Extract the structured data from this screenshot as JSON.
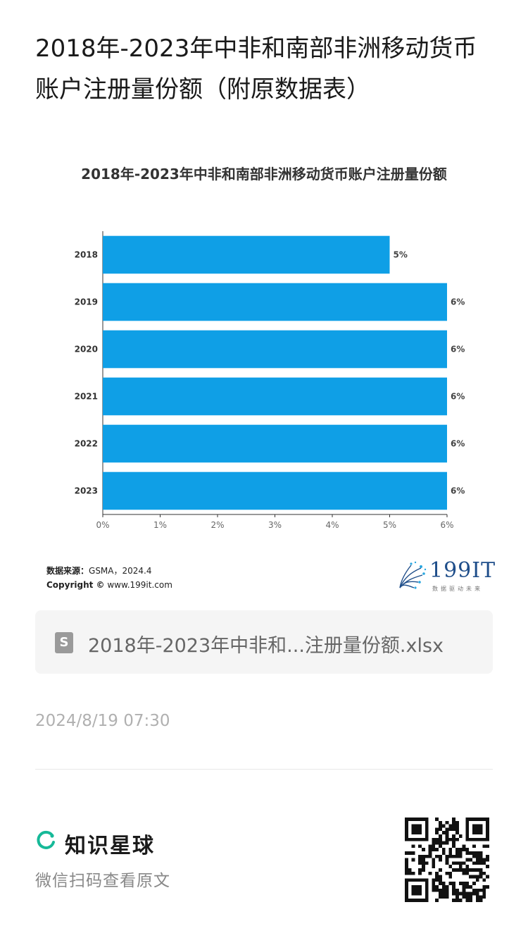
{
  "page": {
    "title": "2018年-2023年中非和南部非洲移动货币账户注册量份额（附原数据表）",
    "source_label": "数据来源：",
    "source_value": "GSMA，2024.4",
    "copyright_label": "Copyright ©",
    "copyright_value": " www.199it.com",
    "logo_text": "199IT",
    "logo_tagline": "数据驱动未来",
    "file_icon_letter": "S",
    "file_name": "2018年-2023年中非和...注册量份额.xlsx",
    "date": "2024/8/19 07:30",
    "brand_name": "知识星球",
    "brand_sub": "微信扫码查看原文"
  },
  "colors": {
    "bar": "#0f9fe6",
    "brand_green": "#16b998",
    "logo_blue": "#1f4e8a"
  },
  "icons": {
    "file": "spreadsheet-file-icon",
    "brand": "zsxq-logo-icon",
    "qr": "qr-code-icon"
  },
  "chart_data": {
    "type": "bar",
    "orientation": "horizontal",
    "title": "2018年-2023年中非和南部非洲移动货币账户注册量份额",
    "categories": [
      "2018",
      "2019",
      "2020",
      "2021",
      "2022",
      "2023"
    ],
    "values": [
      5,
      6,
      6,
      6,
      6,
      6
    ],
    "data_labels": [
      "5%",
      "6%",
      "6%",
      "6%",
      "6%",
      "6%"
    ],
    "xlim": [
      0,
      6
    ],
    "x_ticks": [
      "0%",
      "1%",
      "2%",
      "3%",
      "4%",
      "5%",
      "6%"
    ],
    "xlabel": "",
    "ylabel": "",
    "grid": false,
    "legend": "none"
  }
}
